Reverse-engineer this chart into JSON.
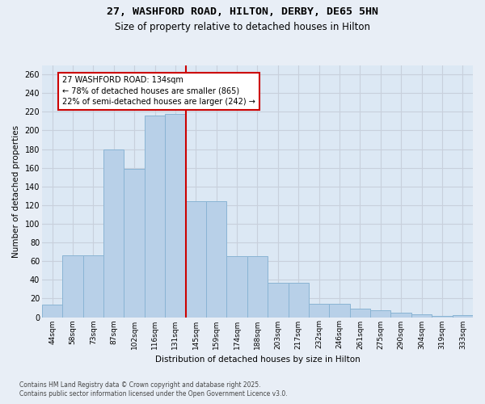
{
  "title_line1": "27, WASHFORD ROAD, HILTON, DERBY, DE65 5HN",
  "title_line2": "Size of property relative to detached houses in Hilton",
  "xlabel": "Distribution of detached houses by size in Hilton",
  "ylabel": "Number of detached properties",
  "categories": [
    "44sqm",
    "58sqm",
    "73sqm",
    "87sqm",
    "102sqm",
    "116sqm",
    "131sqm",
    "145sqm",
    "159sqm",
    "174sqm",
    "188sqm",
    "203sqm",
    "217sqm",
    "232sqm",
    "246sqm",
    "261sqm",
    "275sqm",
    "290sqm",
    "304sqm",
    "319sqm",
    "333sqm"
  ],
  "values": [
    13,
    66,
    66,
    180,
    159,
    216,
    218,
    124,
    124,
    65,
    65,
    37,
    37,
    14,
    14,
    9,
    7,
    5,
    3,
    1,
    2
  ],
  "bar_color": "#b8d0e8",
  "bar_edge_color": "#8ab4d4",
  "vline_x_index": 6.5,
  "annotation_line1": "27 WASHFORD ROAD: 134sqm",
  "annotation_line2": "← 78% of detached houses are smaller (865)",
  "annotation_line3": "22% of semi-detached houses are larger (242) →",
  "annotation_box_color": "#ffffff",
  "annotation_box_edge_color": "#cc0000",
  "vline_color": "#cc0000",
  "ylim": [
    0,
    270
  ],
  "yticks": [
    0,
    20,
    40,
    60,
    80,
    100,
    120,
    140,
    160,
    180,
    200,
    220,
    240,
    260
  ],
  "grid_color": "#c8d0dc",
  "bg_color": "#dce8f4",
  "fig_bg_color": "#e8eef6",
  "footer_line1": "Contains HM Land Registry data © Crown copyright and database right 2025.",
  "footer_line2": "Contains public sector information licensed under the Open Government Licence v3.0."
}
